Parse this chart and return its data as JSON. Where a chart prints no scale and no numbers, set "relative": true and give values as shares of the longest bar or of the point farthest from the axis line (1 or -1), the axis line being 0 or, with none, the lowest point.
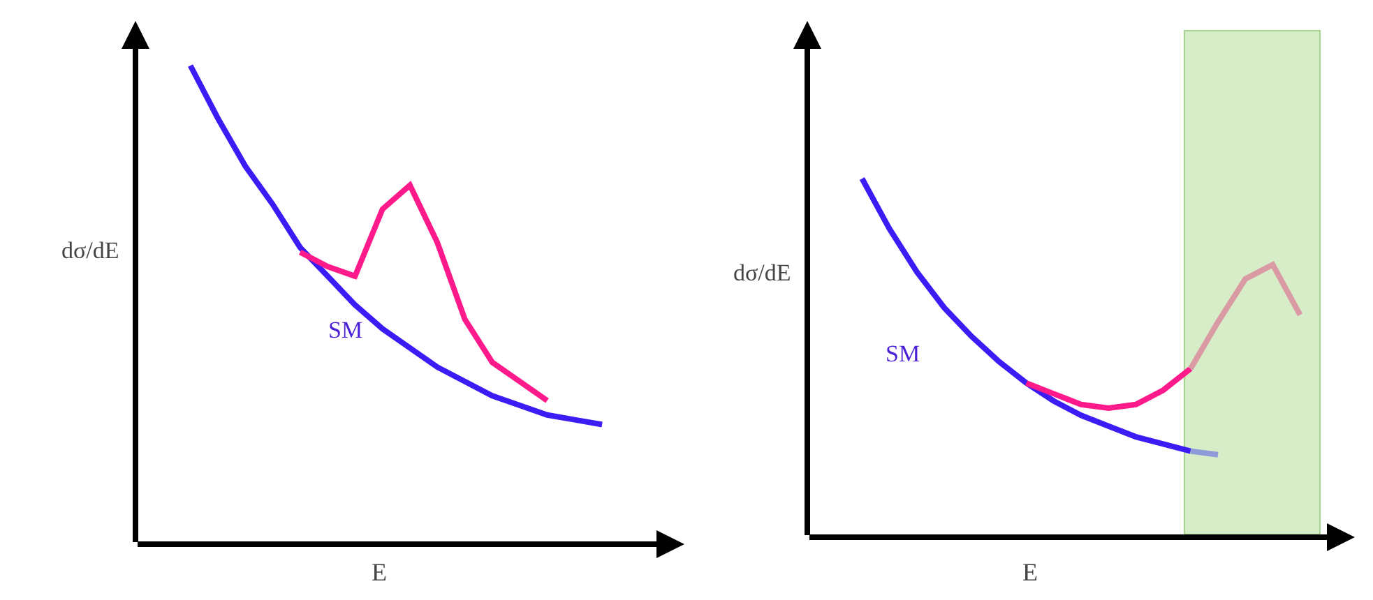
{
  "chart_data": [
    {
      "type": "line",
      "relative": true,
      "xlabel": "E",
      "ylabel": "dσ/dE",
      "legend": false,
      "grid": false,
      "marker": "none",
      "line_style": "solid",
      "categories": [
        null,
        null,
        null,
        null,
        null,
        null,
        null,
        null,
        null,
        null,
        null,
        null,
        null,
        null,
        null,
        null,
        null,
        null,
        null,
        null,
        null
      ],
      "series": [
        {
          "name": "SM",
          "color": "#3c1cf5",
          "values": [
            null,
            null,
            1,
            0.89,
            0.79,
            0.71,
            0.62,
            0.56,
            0.5,
            0.45,
            0.41,
            0.37,
            0.34,
            0.31,
            0.29,
            0.27,
            0.26,
            0.25,
            null,
            null,
            null
          ]
        },
        {
          "color": "#ff1a8c",
          "values": [
            null,
            null,
            null,
            null,
            null,
            null,
            0.61,
            0.58,
            0.56,
            0.7,
            0.75,
            0.63,
            0.47,
            0.38,
            0.34,
            0.3,
            null,
            null,
            null,
            null,
            null
          ]
        }
      ]
    },
    {
      "type": "line",
      "relative": true,
      "xlabel": "E",
      "ylabel": "dσ/dE",
      "legend": false,
      "grid": false,
      "marker": "none",
      "line_style": "solid",
      "categories": [
        null,
        null,
        null,
        null,
        null,
        null,
        null,
        null,
        null,
        null,
        null,
        null,
        null,
        null,
        null,
        null,
        null,
        null,
        null,
        null,
        null
      ],
      "series": [
        {
          "name": "SM",
          "color": "#3c1cf5",
          "values": [
            null,
            null,
            1,
            0.86,
            0.74,
            0.64,
            0.56,
            0.49,
            0.43,
            0.38,
            0.34,
            0.31,
            0.28,
            0.26,
            0.24,
            null,
            null,
            null,
            null,
            null,
            null
          ]
        },
        {
          "color": "#8f9ad8",
          "values": [
            null,
            null,
            null,
            null,
            null,
            null,
            null,
            null,
            null,
            null,
            null,
            null,
            null,
            null,
            0.24,
            0.23,
            null,
            null,
            null,
            null,
            null
          ]
        },
        {
          "color": "#ff1a8c",
          "values": [
            null,
            null,
            null,
            null,
            null,
            null,
            null,
            null,
            0.43,
            0.4,
            0.37,
            0.36,
            0.37,
            0.41,
            0.47,
            null,
            null,
            null,
            null,
            null,
            null
          ]
        },
        {
          "color": "#d99aa3",
          "values": [
            null,
            null,
            null,
            null,
            null,
            null,
            null,
            null,
            null,
            null,
            null,
            null,
            null,
            null,
            0.47,
            0.6,
            0.72,
            0.76,
            0.62,
            null,
            null
          ]
        }
      ]
    }
  ]
}
